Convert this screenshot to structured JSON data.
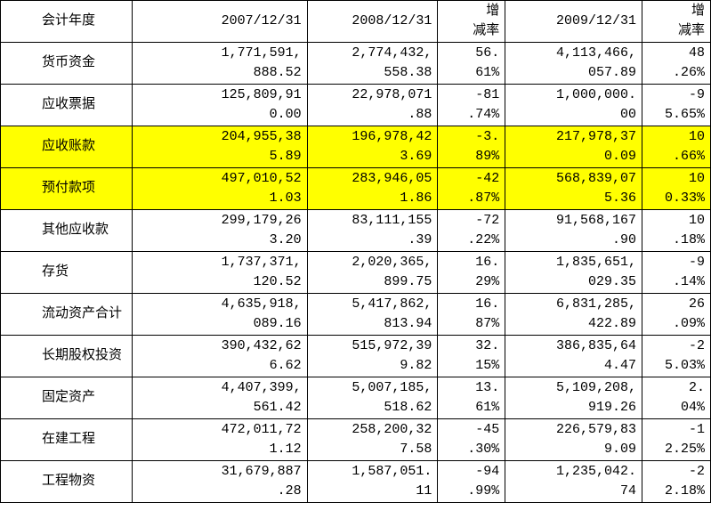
{
  "table": {
    "highlight_color": "#ffff00",
    "rows": [
      {
        "cells": [
          "会计年度",
          "2007/12/31",
          "2008/12/31",
          [
            "增",
            "减率"
          ],
          "2009/12/31",
          [
            "增",
            "减率"
          ]
        ]
      },
      {
        "cells": [
          "货币资金",
          [
            "1,771,591,",
            "888.52"
          ],
          [
            "2,774,432,",
            "558.38"
          ],
          [
            "56.",
            "61%"
          ],
          [
            "4,113,466,",
            "057.89"
          ],
          [
            "48",
            ".26%"
          ]
        ]
      },
      {
        "cells": [
          "应收票据",
          [
            "125,809,91",
            "0.00"
          ],
          [
            "22,978,071",
            ".88"
          ],
          [
            "-81",
            ".74%"
          ],
          [
            "1,000,000.",
            "00"
          ],
          [
            "-9",
            "5.65%"
          ]
        ]
      },
      {
        "cells": [
          "应收账款",
          [
            "204,955,38",
            "5.89"
          ],
          [
            "196,978,42",
            "3.69"
          ],
          [
            "-3.",
            "89%"
          ],
          [
            "217,978,37",
            "0.09"
          ],
          [
            "10",
            ".66%"
          ]
        ],
        "highlight": true
      },
      {
        "cells": [
          "预付款项",
          [
            "497,010,52",
            "1.03"
          ],
          [
            "283,946,05",
            "1.86"
          ],
          [
            "-42",
            ".87%"
          ],
          [
            "568,839,07",
            "5.36"
          ],
          [
            "10",
            "0.33%"
          ]
        ],
        "highlight": true
      },
      {
        "cells": [
          "其他应收款",
          [
            "299,179,26",
            "3.20"
          ],
          [
            "83,111,155",
            ".39"
          ],
          [
            "-72",
            ".22%"
          ],
          [
            "91,568,167",
            ".90"
          ],
          [
            "10",
            ".18%"
          ]
        ]
      },
      {
        "cells": [
          "存货",
          [
            "1,737,371,",
            "120.52"
          ],
          [
            "2,020,365,",
            "899.75"
          ],
          [
            "16.",
            "29%"
          ],
          [
            "1,835,651,",
            "029.35"
          ],
          [
            "-9",
            ".14%"
          ]
        ]
      },
      {
        "cells": [
          "流动资产合计",
          [
            "4,635,918,",
            "089.16"
          ],
          [
            "5,417,862,",
            "813.94"
          ],
          [
            "16.",
            "87%"
          ],
          [
            "6,831,285,",
            "422.89"
          ],
          [
            "26",
            ".09%"
          ]
        ]
      },
      {
        "cells": [
          "长期股权投资",
          [
            "390,432,62",
            "6.62"
          ],
          [
            "515,972,39",
            "9.82"
          ],
          [
            "32.",
            "15%"
          ],
          [
            "386,835,64",
            "4.47"
          ],
          [
            "-2",
            "5.03%"
          ]
        ]
      },
      {
        "cells": [
          "固定资产",
          [
            "4,407,399,",
            "561.42"
          ],
          [
            "5,007,185,",
            "518.62"
          ],
          [
            "13.",
            "61%"
          ],
          [
            "5,109,208,",
            "919.26"
          ],
          [
            "2.",
            "04%"
          ]
        ]
      },
      {
        "cells": [
          "在建工程",
          [
            "472,011,72",
            "1.12"
          ],
          [
            "258,200,32",
            "7.58"
          ],
          [
            "-45",
            ".30%"
          ],
          [
            "226,579,83",
            "9.09"
          ],
          [
            "-1",
            "2.25%"
          ]
        ]
      },
      {
        "cells": [
          "工程物资",
          [
            "31,679,887",
            ".28"
          ],
          [
            "1,587,051.",
            "11"
          ],
          [
            "-94",
            ".99%"
          ],
          [
            "1,235,042.",
            "74"
          ],
          [
            "-2",
            "2.18%"
          ]
        ]
      }
    ]
  }
}
